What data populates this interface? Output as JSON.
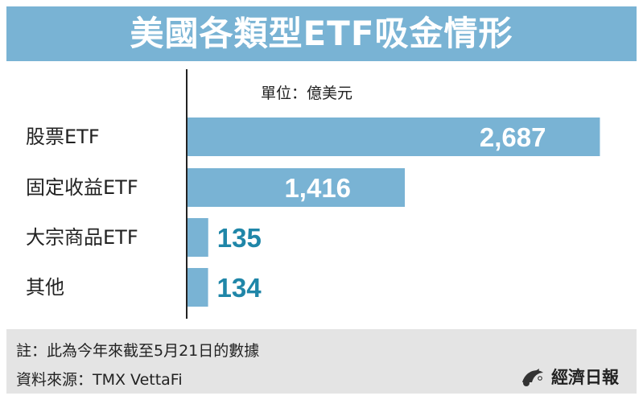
{
  "title": "美國各類型ETF吸金情形",
  "chart_data": {
    "type": "bar",
    "orientation": "horizontal",
    "unit_label": "單位：億美元",
    "categories": [
      "股票ETF",
      "固定收益ETF",
      "大宗商品ETF",
      "其他"
    ],
    "values": [
      2687,
      1416,
      135,
      134
    ],
    "value_labels": [
      "2,687",
      "1,416",
      "135",
      "134"
    ],
    "xlim": [
      0,
      2800
    ],
    "bar_color": "#79b3d4",
    "label_color_outside": "#1f86a8",
    "label_color_inside": "#ffffff"
  },
  "footer": {
    "note": "註：此為今年來截至5月21日的數據",
    "source": "資料來源：TMX VettaFi",
    "brand": "經濟日報"
  },
  "colors": {
    "title_bg": "#79b3d4",
    "footer_bg": "#e4e4e4"
  }
}
